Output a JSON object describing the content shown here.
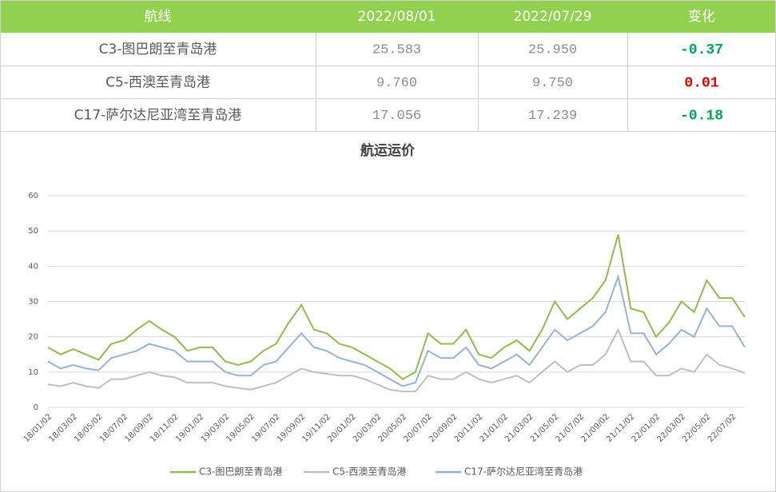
{
  "table": {
    "header": [
      "航线",
      "2022/08/01",
      "2022/07/29",
      "变化"
    ],
    "header_color": "#92d050",
    "rows": [
      {
        "route": "C3-图巴朗至青岛港",
        "v1": "25.583",
        "v2": "25.950",
        "change": "-0.37",
        "change_color": "#00a651"
      },
      {
        "route": "C5-西澳至青岛港",
        "v1": "9.760",
        "v2": "9.750",
        "change": "0.01",
        "change_color": "#e00000"
      },
      {
        "route": "C17-萨尔达尼亚湾至青岛港",
        "v1": "17.056",
        "v2": "17.239",
        "change": "-0.18",
        "change_color": "#00a651"
      }
    ]
  },
  "chart_data": {
    "type": "line",
    "title": "航运运价",
    "categories": [
      "18/01/02",
      null,
      "18/03/02",
      null,
      "18/05/02",
      null,
      "18/07/02",
      null,
      "18/09/02",
      null,
      "18/11/02",
      null,
      "19/01/02",
      null,
      "19/03/02",
      null,
      "19/05/02",
      null,
      "19/07/02",
      null,
      "19/09/02",
      null,
      "19/11/02",
      null,
      "20/01/02",
      null,
      "20/03/02",
      null,
      "20/05/02",
      null,
      "20/07/02",
      null,
      "20/09/02",
      null,
      "20/11/02",
      null,
      "21/01/02",
      null,
      "21/03/02",
      null,
      "21/05/02",
      null,
      "21/07/02",
      null,
      "21/09/02",
      null,
      "21/11/02",
      null,
      "22/01/02",
      null,
      "22/03/02",
      null,
      "22/05/02",
      null,
      "22/07/02",
      null
    ],
    "series": [
      {
        "name": "C3-图巴朗至青岛港",
        "color": "#8fbc4a",
        "values": [
          17,
          15,
          16.5,
          15,
          13.5,
          18,
          19,
          22,
          24.5,
          22,
          20,
          16,
          17,
          17,
          13,
          12,
          13,
          16,
          18,
          24,
          29,
          22,
          21,
          18,
          17,
          15,
          13,
          11,
          8,
          10,
          21,
          18,
          18,
          22,
          15,
          14,
          17,
          19,
          16,
          22,
          30,
          25,
          28,
          31,
          36,
          49,
          28,
          27,
          20,
          24,
          30,
          27,
          36,
          31,
          31,
          25.583
        ]
      },
      {
        "name": "C5-西澳至青岛港",
        "color": "#bfbfbf",
        "values": [
          6.5,
          6,
          7,
          6,
          5.5,
          8,
          8,
          9,
          10,
          9,
          8.5,
          7,
          7,
          7,
          6,
          5.5,
          5,
          6,
          7,
          9,
          11,
          10,
          9.5,
          9,
          9,
          8,
          6.5,
          5,
          4.5,
          4.5,
          9,
          8,
          8,
          10,
          8,
          7,
          8,
          9,
          7,
          10,
          13,
          10,
          12,
          12,
          15,
          22,
          13,
          13,
          9,
          9,
          11,
          10,
          15,
          12,
          11,
          9.76
        ]
      },
      {
        "name": "C17-萨尔达尼亚湾至青岛港",
        "color": "#95b3d7",
        "values": [
          13,
          11,
          12,
          11,
          10.5,
          14,
          15,
          16,
          18,
          17,
          16,
          13,
          13,
          13,
          10,
          9,
          9,
          12,
          13,
          17,
          21,
          17,
          16,
          14,
          13,
          12,
          10,
          8,
          6,
          7,
          16,
          14,
          14,
          17,
          12,
          11,
          13,
          15,
          12,
          17,
          22,
          19,
          21,
          23,
          27,
          37,
          21,
          21,
          15,
          18,
          22,
          20,
          28,
          23,
          23,
          17.056
        ]
      }
    ],
    "ylim": [
      0,
      60
    ],
    "yticks": [
      0,
      10,
      20,
      30,
      40,
      50,
      60
    ],
    "grid": true
  }
}
